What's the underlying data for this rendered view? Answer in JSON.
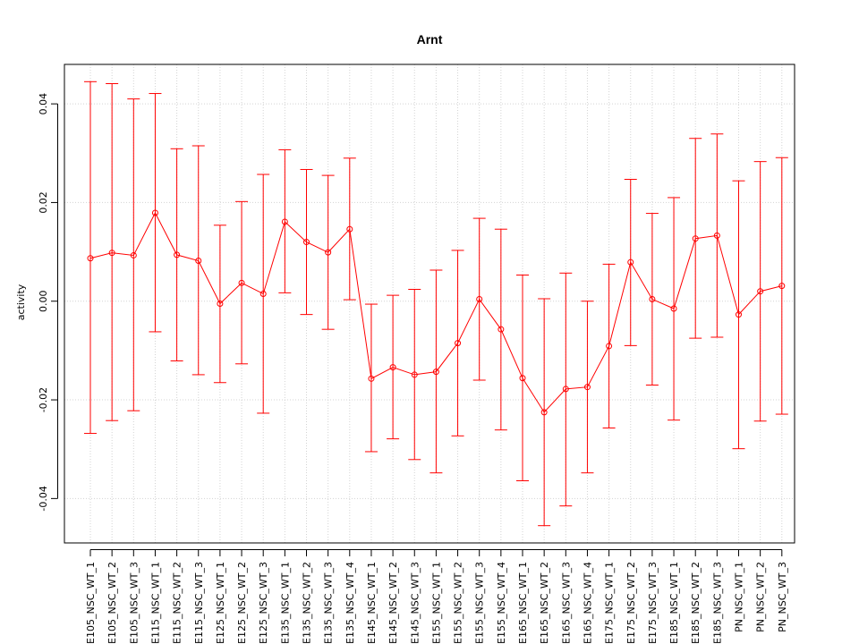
{
  "chart_data": {
    "type": "line",
    "title": "Arnt",
    "xlabel": "",
    "ylabel": "activity",
    "ylim": [
      -0.049,
      0.048
    ],
    "yticks": [
      -0.04,
      -0.02,
      0.0,
      0.02,
      0.04
    ],
    "ytick_labels": [
      "-0.04",
      "-0.02",
      "0.00",
      "0.02",
      "0.04"
    ],
    "grid": true,
    "error_bars": true,
    "colors": {
      "series": "#ff0000",
      "grid": "#d3d3d3",
      "axis": "#000000"
    },
    "categories": [
      "E105_NSC_WT_1",
      "E105_NSC_WT_2",
      "E105_NSC_WT_3",
      "E115_NSC_WT_1",
      "E115_NSC_WT_2",
      "E115_NSC_WT_3",
      "E125_NSC_WT_1",
      "E125_NSC_WT_2",
      "E125_NSC_WT_3",
      "E135_NSC_WT_1",
      "E135_NSC_WT_2",
      "E135_NSC_WT_3",
      "E135_NSC_WT_4",
      "E145_NSC_WT_1",
      "E145_NSC_WT_2",
      "E145_NSC_WT_3",
      "E155_NSC_WT_1",
      "E155_NSC_WT_2",
      "E155_NSC_WT_3",
      "E155_NSC_WT_4",
      "E165_NSC_WT_1",
      "E165_NSC_WT_2",
      "E165_NSC_WT_3",
      "E165_NSC_WT_4",
      "E175_NSC_WT_1",
      "E175_NSC_WT_2",
      "E175_NSC_WT_3",
      "E185_NSC_WT_1",
      "E185_NSC_WT_2",
      "E185_NSC_WT_3",
      "PN_NSC_WT_1",
      "PN_NSC_WT_2",
      "PN_NSC_WT_3"
    ],
    "series": [
      {
        "values": [
          0.0087,
          0.0098,
          0.0093,
          0.0179,
          0.0094,
          0.0082,
          -0.0005,
          0.0037,
          0.0015,
          0.0161,
          0.012,
          0.0099,
          0.0146,
          -0.0157,
          -0.0134,
          -0.0149,
          -0.0143,
          -0.0085,
          0.0004,
          -0.0057,
          -0.0156,
          -0.0225,
          -0.0178,
          -0.0174,
          -0.0091,
          0.0079,
          0.0004,
          -0.0015,
          0.0127,
          0.0133,
          -0.0027,
          0.002,
          0.0031
        ],
        "upper": [
          0.0445,
          0.0441,
          0.041,
          0.0421,
          0.0309,
          0.0315,
          0.0154,
          0.0202,
          0.0257,
          0.0307,
          0.0267,
          0.0255,
          0.029,
          -0.0006,
          0.0012,
          0.0024,
          0.0063,
          0.0103,
          0.0168,
          0.0146,
          0.0053,
          0.0005,
          0.0057,
          0.0,
          0.0075,
          0.0247,
          0.0178,
          0.021,
          0.033,
          0.0339,
          0.0244,
          0.0283,
          0.0291
        ],
        "lower": [
          -0.0268,
          -0.0242,
          -0.0222,
          -0.0062,
          -0.0121,
          -0.0149,
          -0.0165,
          -0.0127,
          -0.0227,
          0.0017,
          -0.0027,
          -0.0057,
          0.0003,
          -0.0305,
          -0.0279,
          -0.0321,
          -0.0348,
          -0.0273,
          -0.016,
          -0.0261,
          -0.0364,
          -0.0455,
          -0.0415,
          -0.0348,
          -0.0257,
          -0.009,
          -0.017,
          -0.0241,
          -0.0075,
          -0.0073,
          -0.0299,
          -0.0243,
          -0.0229
        ]
      }
    ]
  }
}
